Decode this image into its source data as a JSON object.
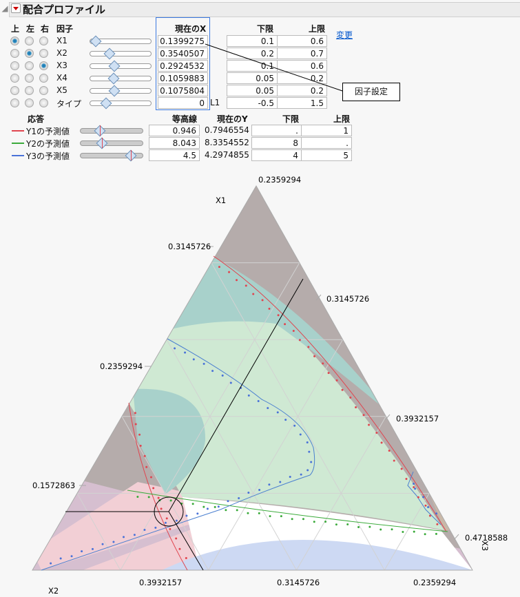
{
  "header": {
    "title": "配合プロファイル"
  },
  "factors": {
    "col_top": "上",
    "col_left": "左",
    "col_right": "右",
    "col_factor": "因子",
    "col_current": "現在のX",
    "col_lower": "下限",
    "col_upper": "上限",
    "change_link": "変更",
    "callout": "因子設定",
    "rows": [
      {
        "name": "X1",
        "value": "0.1399275",
        "lower": "0.1",
        "upper": "0.6",
        "radio": "top",
        "slider": 0.08
      },
      {
        "name": "X2",
        "value": "0.3540507",
        "lower": "0.2",
        "upper": "0.7",
        "radio": "left",
        "slider": 0.31
      },
      {
        "name": "X3",
        "value": "0.2924532",
        "lower": "0.1",
        "upper": "0.6",
        "radio": "right",
        "slider": 0.39
      },
      {
        "name": "X4",
        "value": "0.1059883",
        "lower": "0.05",
        "upper": "0.2",
        "radio": "none",
        "slider": 0.38
      },
      {
        "name": "X5",
        "value": "0.1075804",
        "lower": "0.05",
        "upper": "0.2",
        "radio": "none",
        "slider": 0.39
      },
      {
        "name": "タイプ",
        "value": "0",
        "suffix": "L1",
        "lower": "-0.5",
        "upper": "1.5",
        "radio": "none",
        "slider": 0.25
      }
    ]
  },
  "responses": {
    "col_response": "応答",
    "col_contour": "等高線",
    "col_current": "現在のY",
    "col_lower": "下限",
    "col_upper": "上限",
    "rows": [
      {
        "name": "Y1の予測値",
        "color": "#e0454f",
        "contour": "0.946",
        "current": "0.7946554",
        "lower": ".",
        "upper": "1"
      },
      {
        "name": "Y2の予測値",
        "color": "#3aaa3a",
        "contour": "8.043",
        "current": "8.3354552",
        "lower": "8",
        "upper": "."
      },
      {
        "name": "Y3の予測値",
        "color": "#4a72d8",
        "contour": "4.5",
        "current": "4.2974855",
        "lower": "4",
        "upper": "5"
      }
    ]
  },
  "ternary": {
    "axis_top": "X1",
    "axis_left": "X2",
    "axis_right": "X3",
    "ticks": {
      "top_apex": "0.2359294",
      "left": [
        "0.3145726",
        "0.2359294",
        "0.1572863"
      ],
      "right": [
        "0.3145726",
        "0.3932157",
        "0.4718588"
      ],
      "bottom": [
        "0.3932157",
        "0.3145726",
        "0.2359294"
      ]
    }
  }
}
